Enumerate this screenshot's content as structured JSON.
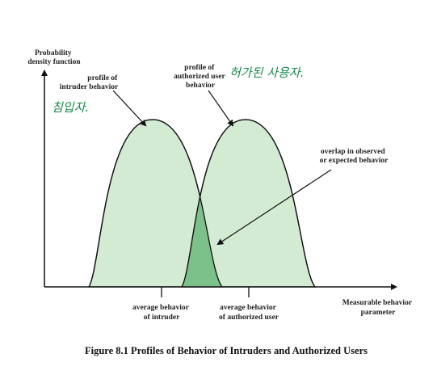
{
  "y_axis_label": [
    "Probability",
    "density function"
  ],
  "x_axis_label": [
    "Measurable behavior",
    "parameter"
  ],
  "intruder_profile_label": [
    "profile of",
    "intruder behavior"
  ],
  "authorized_profile_label": [
    "profile of",
    "authorized user",
    "behavior"
  ],
  "overlap_label": [
    "overlap in observed",
    "or expected behavior"
  ],
  "avg_intruder_label": [
    "average behavior",
    "of intruder"
  ],
  "avg_authorized_label": [
    "average behavior",
    "of authorized user"
  ],
  "handwritten_intruder": "침입자.",
  "handwritten_authorized": "허가된 사용자.",
  "caption": "Figure 8.1  Profiles of Behavior of Intruders and Authorized Users",
  "colors": {
    "curve_fill": "#d3ead3",
    "overlap_fill": "#7cc08a",
    "stroke": "#111111",
    "handwriting": "#1a8a4a"
  }
}
